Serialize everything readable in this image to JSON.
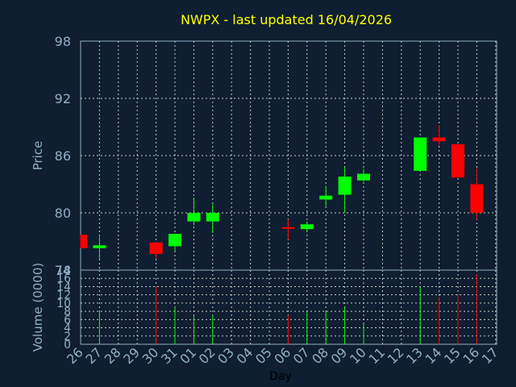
{
  "chart_data": [
    {
      "type": "candlestick",
      "title": "NWPX - last updated 16/04/2026",
      "ylabel": "Price",
      "ylim": [
        74,
        98
      ],
      "yticks": [
        74,
        80,
        86,
        92,
        98
      ],
      "grid": true,
      "colors": {
        "up": "#00ff00",
        "down": "#ff0000",
        "background": "#0f1e30",
        "grid": "#c8c8c8",
        "text": "#8fb0c8",
        "title": "#ffff00"
      },
      "categories": [
        "26",
        "27",
        "28",
        "29",
        "30",
        "31",
        "01",
        "02",
        "03",
        "04",
        "05",
        "06",
        "07",
        "08",
        "09",
        "10",
        "11",
        "12",
        "13",
        "14",
        "15",
        "16",
        "17"
      ],
      "candles": [
        {
          "day": "26",
          "open": 77.7,
          "high": 77.7,
          "low": 76.3,
          "close": 76.3
        },
        {
          "day": "27",
          "open": 76.3,
          "high": 77.5,
          "low": 75.2,
          "close": 76.6
        },
        {
          "day": "30",
          "open": 76.9,
          "high": 76.9,
          "low": 75.2,
          "close": 75.7
        },
        {
          "day": "31",
          "open": 76.5,
          "high": 77.8,
          "low": 76.0,
          "close": 77.8
        },
        {
          "day": "01",
          "open": 79.1,
          "high": 81.6,
          "low": 78.7,
          "close": 80.0
        },
        {
          "day": "02",
          "open": 79.1,
          "high": 80.9,
          "low": 77.9,
          "close": 80.0
        },
        {
          "day": "06",
          "open": 78.5,
          "high": 79.3,
          "low": 77.2,
          "close": 78.4
        },
        {
          "day": "07",
          "open": 78.3,
          "high": 79.1,
          "low": 78.0,
          "close": 78.8
        },
        {
          "day": "08",
          "open": 81.4,
          "high": 82.8,
          "low": 80.7,
          "close": 81.8
        },
        {
          "day": "09",
          "open": 81.9,
          "high": 84.8,
          "low": 80.0,
          "close": 83.8
        },
        {
          "day": "10",
          "open": 83.4,
          "high": 84.6,
          "low": 83.3,
          "close": 84.1
        },
        {
          "day": "13",
          "open": 84.4,
          "high": 87.9,
          "low": 84.4,
          "close": 87.9
        },
        {
          "day": "14",
          "open": 87.9,
          "high": 89.2,
          "low": 87.1,
          "close": 87.5
        },
        {
          "day": "15",
          "open": 87.2,
          "high": 87.2,
          "low": 83.7,
          "close": 83.7
        },
        {
          "day": "16",
          "open": 83.0,
          "high": 84.7,
          "low": 79.3,
          "close": 80.0
        }
      ]
    },
    {
      "type": "bar",
      "ylabel": "Volume (0000)",
      "xlabel": "Day",
      "ylim": [
        0,
        18
      ],
      "yticks": [
        0,
        2,
        4,
        6,
        8,
        10,
        12,
        14,
        16,
        18
      ],
      "grid": true,
      "categories": [
        "26",
        "27",
        "28",
        "29",
        "30",
        "31",
        "01",
        "02",
        "03",
        "04",
        "05",
        "06",
        "07",
        "08",
        "09",
        "10",
        "11",
        "12",
        "13",
        "14",
        "15",
        "16",
        "17"
      ],
      "bars": [
        {
          "day": "27",
          "value": 8,
          "direction": "up"
        },
        {
          "day": "30",
          "value": 14,
          "direction": "down"
        },
        {
          "day": "31",
          "value": 9,
          "direction": "up"
        },
        {
          "day": "01",
          "value": 7,
          "direction": "up"
        },
        {
          "day": "02",
          "value": 7,
          "direction": "up"
        },
        {
          "day": "06",
          "value": 7,
          "direction": "down"
        },
        {
          "day": "07",
          "value": 8,
          "direction": "up"
        },
        {
          "day": "08",
          "value": 8,
          "direction": "up"
        },
        {
          "day": "09",
          "value": 9,
          "direction": "up"
        },
        {
          "day": "10",
          "value": 5,
          "direction": "up"
        },
        {
          "day": "13",
          "value": 14,
          "direction": "up"
        },
        {
          "day": "14",
          "value": 11.5,
          "direction": "down"
        },
        {
          "day": "15",
          "value": 12,
          "direction": "down"
        },
        {
          "day": "16",
          "value": 17,
          "direction": "down"
        }
      ]
    }
  ]
}
